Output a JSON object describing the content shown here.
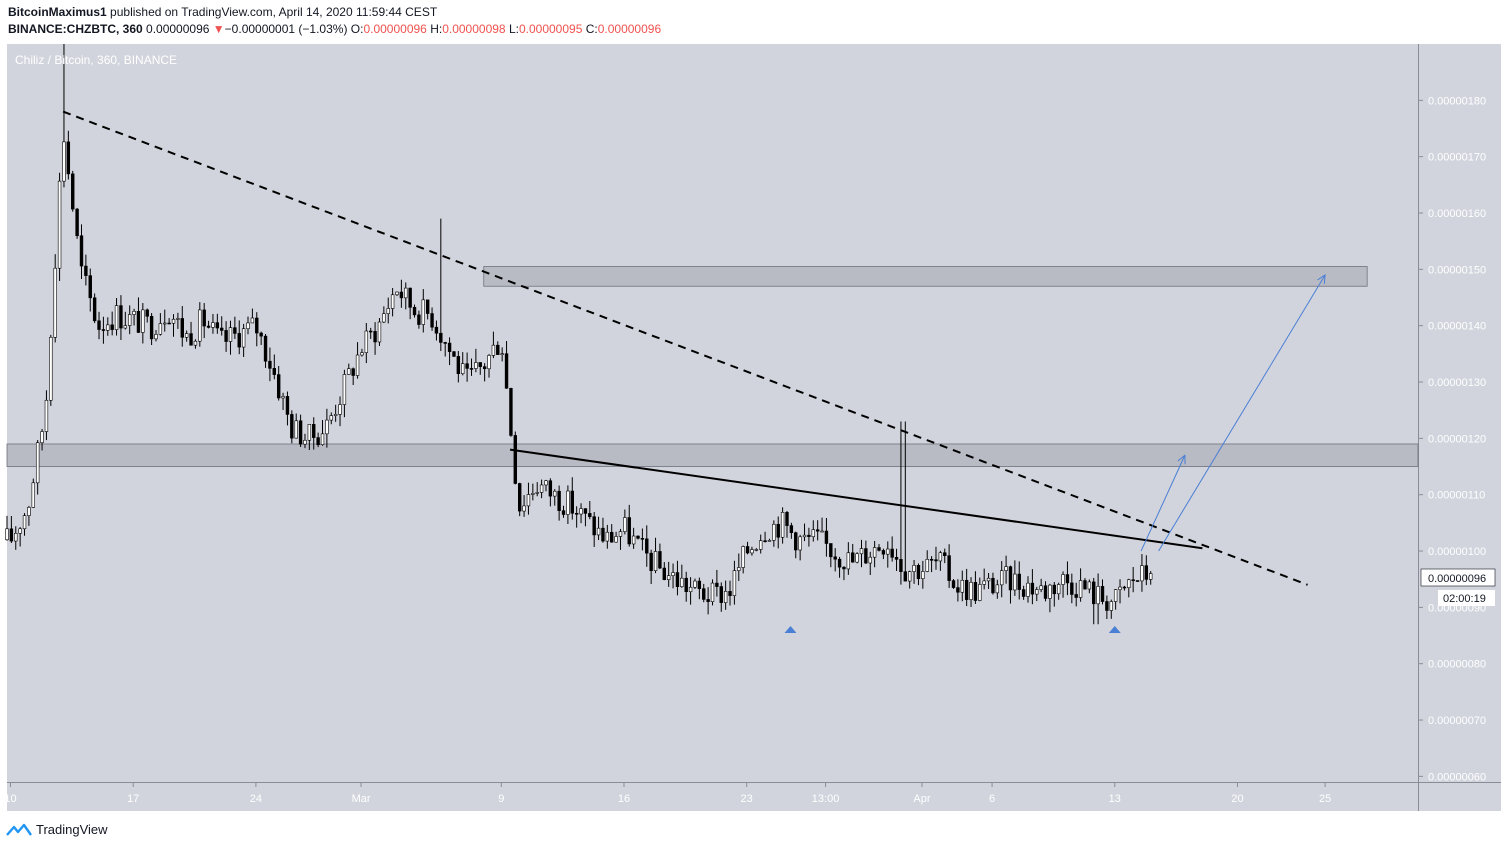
{
  "header": {
    "author": "BitcoinMaximus1",
    "published": "published on TradingView.com, April 14, 2020 11:59:44 CEST",
    "symbol": "BINANCE:CHZBTC, 360",
    "last_price": "0.00000096",
    "change_arrow": "▼",
    "change": "−0.00000001 (−1.03%)",
    "o_label": "O:",
    "o_value": "0.00000096",
    "h_label": "H:",
    "h_value": "0.00000098",
    "l_label": "L:",
    "l_value": "0.00000095",
    "c_label": "C:",
    "c_value": "0.00000096"
  },
  "chart_title": "Chiliz / Bitcoin, 360, BINANCE",
  "price_tag": "0.00000096",
  "countdown": "02:00:19",
  "footer": {
    "brand": "TradingView"
  },
  "colors": {
    "plot_bg": "#d1d4dc",
    "zone": "#9a9ca6",
    "arrow": "#4a7fd6",
    "candle": "#000000"
  },
  "chart_data": {
    "type": "candlestick",
    "title": "Chiliz / Bitcoin, 360, BINANCE",
    "y_ticks": [
      "0.00000180",
      "0.00000170",
      "0.00000160",
      "0.00000150",
      "0.00000140",
      "0.00000130",
      "0.00000120",
      "0.00000110",
      "0.00000100",
      "0.00000090",
      "0.00000080",
      "0.00000070",
      "0.00000060"
    ],
    "y_tick_values": [
      1.8e-06,
      1.7e-06,
      1.6e-06,
      1.5e-06,
      1.4e-06,
      1.3e-06,
      1.2e-06,
      1.1e-06,
      1e-06,
      9e-07,
      8e-07,
      7e-07,
      6e-07
    ],
    "x_ticks": [
      "10",
      "17",
      "24",
      "Mar",
      "9",
      "16",
      "23",
      "13:00",
      "Apr",
      "6",
      "13",
      "20",
      "25"
    ],
    "x_tick_days": [
      10,
      17,
      24,
      30,
      38,
      45,
      52,
      56.5,
      62,
      66,
      73,
      80,
      85
    ],
    "x_range_days": [
      9.8,
      90.3
    ],
    "y_range": [
      5.9e-07,
      1.9e-06
    ],
    "close_anchor_days": [
      10,
      11,
      12,
      13,
      14,
      15,
      16,
      18,
      19,
      20,
      21,
      22,
      24,
      25,
      26,
      27,
      28,
      30,
      31,
      32,
      33,
      34,
      35,
      36,
      37,
      38,
      39,
      40,
      41,
      42,
      43,
      44,
      45,
      46,
      47,
      48,
      49,
      50,
      51,
      52,
      53,
      54,
      55,
      56,
      57,
      58,
      59,
      60,
      61,
      62,
      63,
      64,
      65,
      66,
      67,
      68,
      69,
      70,
      71,
      72,
      73,
      74,
      75
    ],
    "close_anchor_values": [
      1.02e-06,
      1.08e-06,
      1.25e-06,
      1.75e-06,
      1.5e-06,
      1.4e-06,
      1.42e-06,
      1.4e-06,
      1.43e-06,
      1.38e-06,
      1.41e-06,
      1.37e-06,
      1.4e-06,
      1.32e-06,
      1.22e-06,
      1.2e-06,
      1.22e-06,
      1.36e-06,
      1.4e-06,
      1.47e-06,
      1.43e-06,
      1.42e-06,
      1.36e-06,
      1.3e-06,
      1.33e-06,
      1.38e-06,
      1.08e-06,
      1.12e-06,
      1.1e-06,
      1.08e-06,
      1.05e-06,
      1.02e-06,
      1.04e-06,
      1e-06,
      9.7e-07,
      9.5e-07,
      9.3e-07,
      9.2e-07,
      9.3e-07,
      1e-06,
      1.04e-06,
      1.05e-06,
      1.02e-06,
      1.02e-06,
      1e-06,
      9.8e-07,
      1e-06,
      1.02e-06,
      9.7e-07,
      9.7e-07,
      9.8e-07,
      9.4e-07,
      9.3e-07,
      9.4e-07,
      9.5e-07,
      9.4e-07,
      9.3e-07,
      9.5e-07,
      9.4e-07,
      9.2e-07,
      9.1e-07,
      9.5e-07,
      9.6e-07
    ],
    "resistance_zone": [
      1.47e-06,
      1.505e-06
    ],
    "support_zone": [
      1.15e-06,
      1.19e-06
    ],
    "dashed_trendline": [
      [
        13.0,
        1.78e-06
      ],
      [
        84.0,
        9.4e-07
      ]
    ],
    "solid_trendline": [
      [
        38.5,
        1.18e-06
      ],
      [
        78.0,
        1.005e-06
      ]
    ],
    "projection_arrows": [
      [
        [
          74.5,
          1e-06
        ],
        [
          77.0,
          1.17e-06
        ]
      ],
      [
        [
          75.5,
          1e-06
        ],
        [
          85.0,
          1.49e-06
        ]
      ]
    ],
    "low_markers_days": [
      54.5,
      73.0
    ],
    "last_close": 9.6e-07
  }
}
